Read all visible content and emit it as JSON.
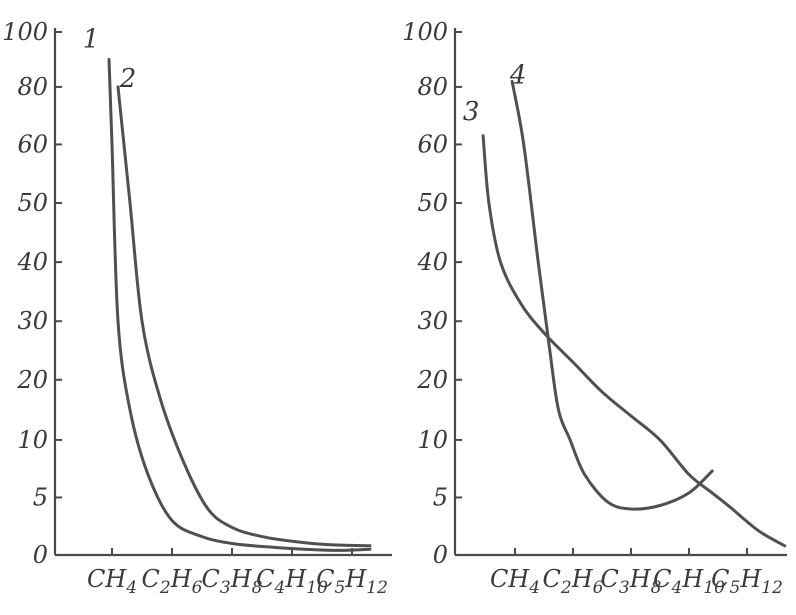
{
  "chart_data": [
    {
      "type": "line",
      "title": "",
      "xlabel": "",
      "ylabel": "",
      "y_scale": "nonlinear",
      "y_ticks": [
        0,
        5,
        10,
        20,
        30,
        40,
        50,
        60,
        80,
        100
      ],
      "ylim": [
        0,
        100
      ],
      "categories": [
        "CH4",
        "C2H6",
        "C3H8",
        "C4H10",
        "C5H12"
      ],
      "category_labels": [
        {
          "base": "CH",
          "parts": [
            {
              "t": "4",
              "sub": true
            }
          ]
        },
        {
          "base": "C",
          "parts": [
            {
              "t": "2",
              "sub": true
            },
            {
              "t": "H",
              "sub": false
            },
            {
              "t": "6",
              "sub": true
            }
          ]
        },
        {
          "base": "C",
          "parts": [
            {
              "t": "3",
              "sub": true
            },
            {
              "t": "H",
              "sub": false
            },
            {
              "t": "8",
              "sub": true
            }
          ]
        },
        {
          "base": "C",
          "parts": [
            {
              "t": "4",
              "sub": true
            },
            {
              "t": "H",
              "sub": false
            },
            {
              "t": "10",
              "sub": true
            }
          ]
        },
        {
          "base": "C",
          "parts": [
            {
              "t": "5",
              "sub": true
            },
            {
              "t": "H",
              "sub": false
            },
            {
              "t": "12",
              "sub": true
            }
          ]
        }
      ],
      "grid": false,
      "series": [
        {
          "label": "1",
          "color": "#505050",
          "points": [
            [
              -0.05,
              90
            ],
            [
              0.0,
              60
            ],
            [
              0.1,
              30
            ],
            [
              0.3,
              15
            ],
            [
              0.6,
              7
            ],
            [
              1.0,
              3
            ],
            [
              1.5,
              1.6
            ],
            [
              2.0,
              1.0
            ],
            [
              2.6,
              0.7
            ],
            [
              3.2,
              0.5
            ],
            [
              3.8,
              0.4
            ],
            [
              4.3,
              0.5
            ]
          ]
        },
        {
          "label": "2",
          "color": "#505050",
          "points": [
            [
              0.1,
              80
            ],
            [
              0.3,
              50
            ],
            [
              0.5,
              30
            ],
            [
              0.8,
              17
            ],
            [
              1.2,
              8
            ],
            [
              1.6,
              4
            ],
            [
              2.0,
              2.4
            ],
            [
              2.5,
              1.6
            ],
            [
              3.0,
              1.2
            ],
            [
              3.6,
              0.9
            ],
            [
              4.3,
              0.8
            ]
          ]
        }
      ]
    },
    {
      "type": "line",
      "title": "",
      "xlabel": "",
      "ylabel": "",
      "y_scale": "nonlinear",
      "y_ticks": [
        0,
        5,
        10,
        20,
        30,
        40,
        50,
        60,
        80,
        100
      ],
      "ylim": [
        0,
        100
      ],
      "categories": [
        "CH4",
        "C2H6",
        "C3H8",
        "C4H10",
        "C5H12"
      ],
      "category_labels": [
        {
          "base": "CH",
          "parts": [
            {
              "t": "4",
              "sub": true
            }
          ]
        },
        {
          "base": "C",
          "parts": [
            {
              "t": "2",
              "sub": true
            },
            {
              "t": "H",
              "sub": false
            },
            {
              "t": "6",
              "sub": true
            }
          ]
        },
        {
          "base": "C",
          "parts": [
            {
              "t": "3",
              "sub": true
            },
            {
              "t": "H",
              "sub": false
            },
            {
              "t": "8",
              "sub": true
            }
          ]
        },
        {
          "base": "C",
          "parts": [
            {
              "t": "4",
              "sub": true
            },
            {
              "t": "H",
              "sub": false
            },
            {
              "t": "10",
              "sub": true
            }
          ]
        },
        {
          "base": "C",
          "parts": [
            {
              "t": "5",
              "sub": true
            },
            {
              "t": "H",
              "sub": false
            },
            {
              "t": "12",
              "sub": true
            }
          ]
        }
      ],
      "grid": false,
      "series": [
        {
          "label": "3",
          "color": "#505050",
          "points": [
            [
              -0.55,
              63
            ],
            [
              -0.45,
              50
            ],
            [
              -0.25,
              40
            ],
            [
              0.1,
              33
            ],
            [
              0.5,
              28
            ],
            [
              1.0,
              23
            ],
            [
              1.5,
              18
            ],
            [
              2.0,
              14
            ],
            [
              2.5,
              10
            ],
            [
              3.0,
              7
            ],
            [
              3.4,
              5.4
            ],
            [
              3.7,
              4.2
            ],
            [
              4.2,
              2.1
            ],
            [
              4.65,
              0.8
            ]
          ]
        },
        {
          "label": "4",
          "color": "#505050",
          "points": [
            [
              -0.05,
              82
            ],
            [
              0.15,
              60
            ],
            [
              0.4,
              40
            ],
            [
              0.6,
              25
            ],
            [
              0.75,
              15
            ],
            [
              0.95,
              10
            ],
            [
              1.2,
              7
            ],
            [
              1.6,
              4.6
            ],
            [
              2.0,
              4.0
            ],
            [
              2.5,
              4.3
            ],
            [
              3.0,
              5.4
            ],
            [
              3.4,
              7.3
            ]
          ]
        }
      ]
    }
  ]
}
